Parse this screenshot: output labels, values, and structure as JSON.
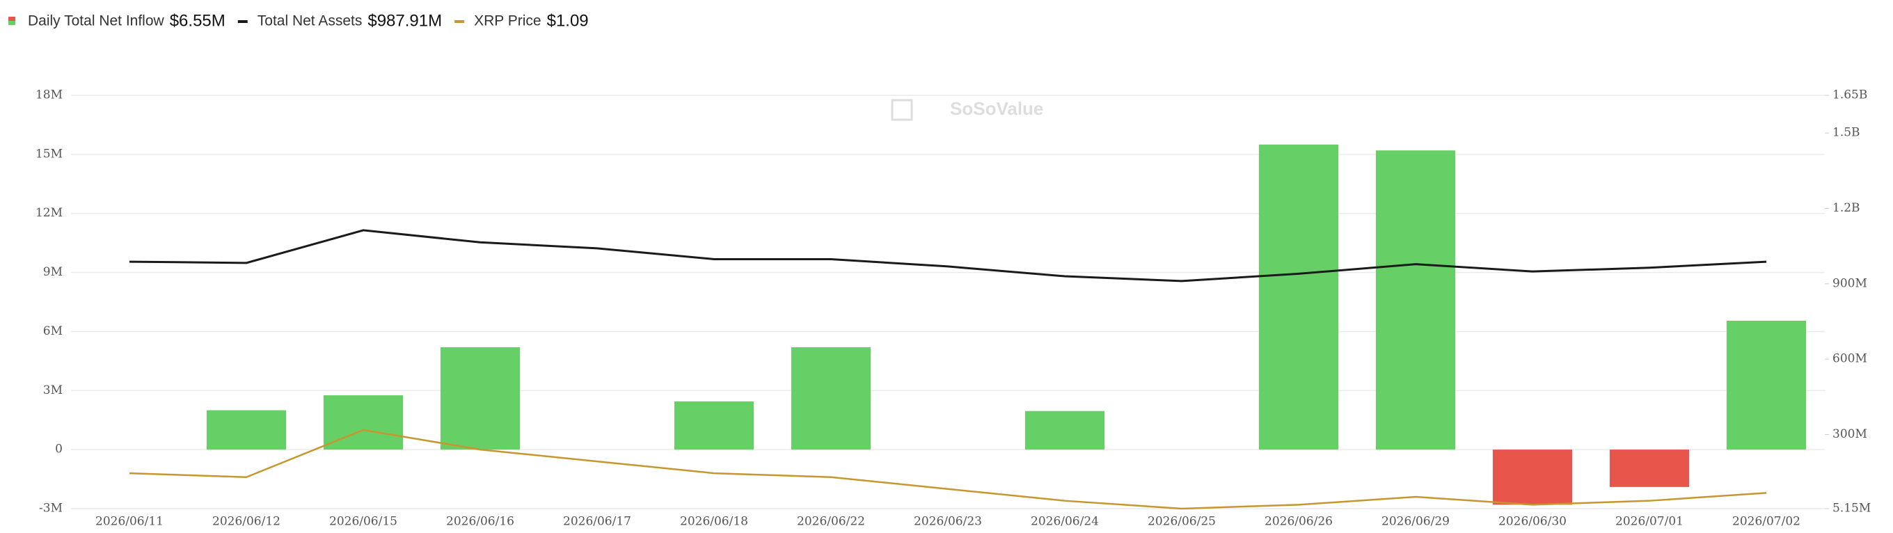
{
  "chart_data": {
    "type": "bar-line",
    "watermark": "SoSoValue",
    "categories": [
      "2026/06/11",
      "2026/06/12",
      "2026/06/15",
      "2026/06/16",
      "2026/06/17",
      "2026/06/18",
      "2026/06/22",
      "2026/06/23",
      "2026/06/24",
      "2026/06/25",
      "2026/06/26",
      "2026/06/29",
      "2026/06/30",
      "2026/07/01",
      "2026/07/02"
    ],
    "series": [
      {
        "name": "Daily Total Net Inflow",
        "current_label": "$6.55M",
        "type": "bar",
        "axis": "y",
        "color": "#66cf66",
        "negative_color": "#e8554a",
        "values": [
          0,
          2000000,
          2760000,
          5200000,
          0,
          2450000,
          5200000,
          0,
          1960000,
          0,
          15500000,
          15200000,
          -2800000,
          -1900000,
          6550000
        ]
      },
      {
        "name": "Total Net Assets",
        "current_label": "$987.91M",
        "type": "line",
        "axis": "y2",
        "color": "#1a1a1a",
        "values": [
          988000000,
          983000000,
          1113000000,
          1065000000,
          1041000000,
          998000000,
          998000000,
          969000000,
          930000000,
          911000000,
          940000000,
          978000000,
          949000000,
          964000000,
          987910000
        ]
      },
      {
        "name": "XRP Price",
        "current_label": "$1.09",
        "type": "line",
        "axis": "y3",
        "color": "#c8962e",
        "values": [
          1.14,
          1.13,
          1.25,
          1.2,
          1.17,
          1.14,
          1.13,
          1.1,
          1.07,
          1.05,
          1.06,
          1.08,
          1.06,
          1.07,
          1.09
        ]
      }
    ],
    "ylim": [
      -3000000,
      18000000
    ],
    "yticks": [
      {
        "value": -3000000,
        "label": "-3M"
      },
      0,
      {
        "value": 3000000,
        "label": "3M"
      },
      {
        "value": 6000000,
        "label": "6M"
      },
      {
        "value": 9000000,
        "label": "9M"
      },
      {
        "value": 12000000,
        "label": "12M"
      },
      {
        "value": 15000000,
        "label": "15M"
      },
      {
        "value": 18000000,
        "label": "18M"
      }
    ],
    "y2lim": [
      5150000,
      1650000000
    ],
    "y2ticks": [
      {
        "value": 5150000,
        "label": "5.15M"
      },
      {
        "value": 300000000,
        "label": "300M"
      },
      {
        "value": 600000000,
        "label": "600M"
      },
      {
        "value": 900000000,
        "label": "900M"
      },
      {
        "value": 1200000000,
        "label": "1.2B"
      },
      {
        "value": 1500000000,
        "label": "1.5B"
      },
      {
        "value": 1650000000,
        "label": "1.65B"
      }
    ],
    "y3lim": [
      1.05,
      2.1
    ],
    "grid": true
  }
}
